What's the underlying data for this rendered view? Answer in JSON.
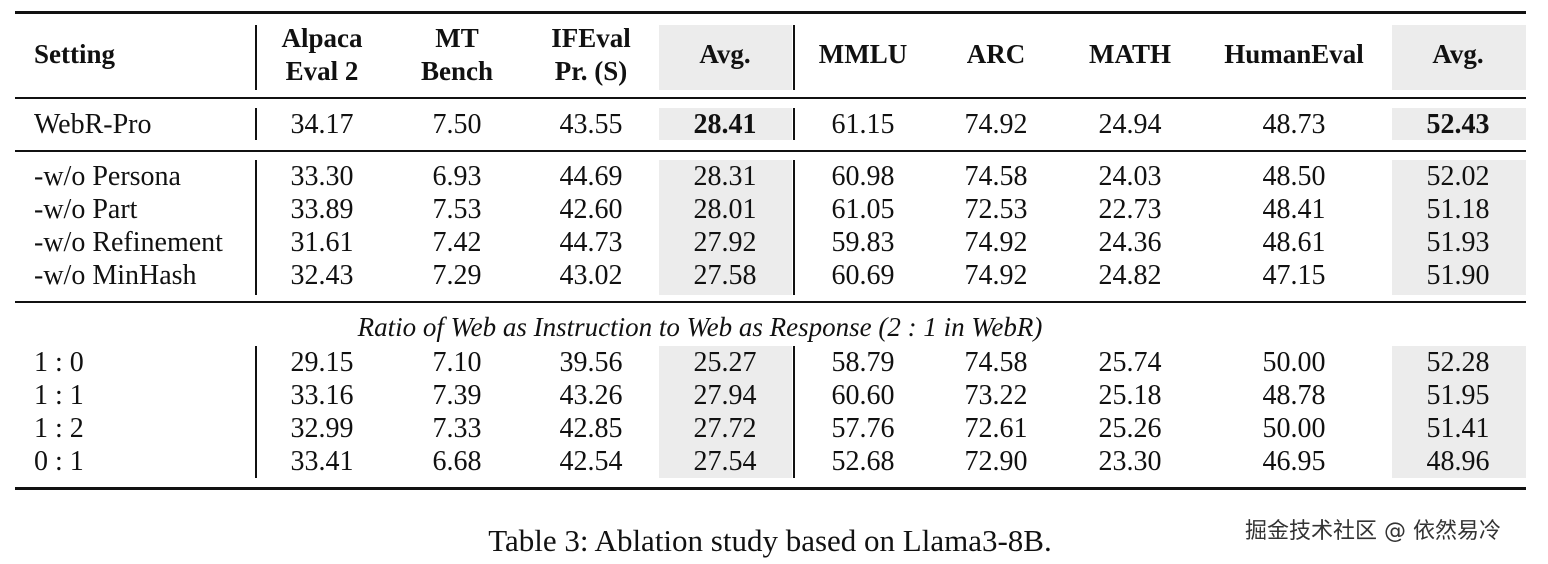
{
  "headers": [
    {
      "lines": [
        "Setting"
      ]
    },
    {
      "lines": [
        "Alpaca",
        "Eval 2"
      ]
    },
    {
      "lines": [
        "MT",
        "Bench"
      ]
    },
    {
      "lines": [
        "IFEval",
        "Pr. (S)"
      ]
    },
    {
      "lines": [
        "Avg."
      ]
    },
    {
      "lines": [
        "MMLU"
      ]
    },
    {
      "lines": [
        "ARC"
      ]
    },
    {
      "lines": [
        "MATH"
      ]
    },
    {
      "lines": [
        "HumanEval"
      ]
    },
    {
      "lines": [
        "Avg."
      ]
    }
  ],
  "groups": [
    {
      "rows": [
        {
          "setting": "WebR-Pro",
          "values": [
            "34.17",
            "7.50",
            "43.55",
            "28.41",
            "61.15",
            "74.92",
            "24.94",
            "48.73",
            "52.43"
          ],
          "bold_avg": true
        }
      ]
    },
    {
      "rows": [
        {
          "setting": "-w/o Persona",
          "values": [
            "33.30",
            "6.93",
            "44.69",
            "28.31",
            "60.98",
            "74.58",
            "24.03",
            "48.50",
            "52.02"
          ]
        },
        {
          "setting": "-w/o Part",
          "values": [
            "33.89",
            "7.53",
            "42.60",
            "28.01",
            "61.05",
            "72.53",
            "22.73",
            "48.41",
            "51.18"
          ]
        },
        {
          "setting": "-w/o Refinement",
          "values": [
            "31.61",
            "7.42",
            "44.73",
            "27.92",
            "59.83",
            "74.92",
            "24.36",
            "48.61",
            "51.93"
          ]
        },
        {
          "setting": "-w/o MinHash",
          "values": [
            "32.43",
            "7.29",
            "43.02",
            "27.58",
            "60.69",
            "74.92",
            "24.82",
            "47.15",
            "51.90"
          ]
        }
      ]
    },
    {
      "section_title": "Ratio of Web as Instruction to Web as Response (2 : 1 in WebR)",
      "rows": [
        {
          "setting": "1 : 0",
          "values": [
            "29.15",
            "7.10",
            "39.56",
            "25.27",
            "58.79",
            "74.58",
            "25.74",
            "50.00",
            "52.28"
          ]
        },
        {
          "setting": "1 : 1",
          "values": [
            "33.16",
            "7.39",
            "43.26",
            "27.94",
            "60.60",
            "73.22",
            "25.18",
            "48.78",
            "51.95"
          ]
        },
        {
          "setting": "1 : 2",
          "values": [
            "32.99",
            "7.33",
            "42.85",
            "27.72",
            "57.76",
            "72.61",
            "25.26",
            "50.00",
            "51.41"
          ]
        },
        {
          "setting": "0 : 1",
          "values": [
            "33.41",
            "6.68",
            "42.54",
            "27.54",
            "52.68",
            "72.90",
            "23.30",
            "46.95",
            "48.96"
          ]
        }
      ]
    }
  ],
  "caption": "Table 3: Ablation study based on Llama3-8B.",
  "watermark": "掘金技术社区 @ 依然易冷",
  "colors": {
    "shade": "#ececec",
    "rule": "#111111"
  }
}
